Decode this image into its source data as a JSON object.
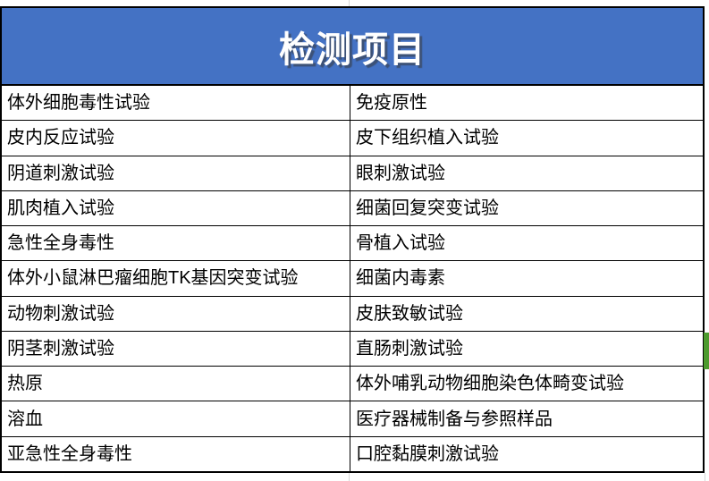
{
  "header": {
    "title": "检测项目"
  },
  "table": {
    "rows": [
      {
        "left": "体外细胞毒性试验",
        "right": "免疫原性"
      },
      {
        "left": "皮内反应试验",
        "right": "皮下组织植入试验"
      },
      {
        "left": "阴道刺激试验",
        "right": "眼刺激试验"
      },
      {
        "left": "肌肉植入试验",
        "right": "细菌回复突变试验"
      },
      {
        "left": "急性全身毒性",
        "right": "骨植入试验"
      },
      {
        "left": "体外小鼠淋巴瘤细胞TK基因突变试验",
        "right": "细菌内毒素"
      },
      {
        "left": "动物刺激试验",
        "right": "皮肤致敏试验"
      },
      {
        "left": "阴茎刺激试验",
        "right": "直肠刺激试验"
      },
      {
        "left": "热原",
        "right": "体外哺乳动物细胞染色体畸变试验"
      },
      {
        "left": "溶血",
        "right": "医疗器械制备与参照样品"
      },
      {
        "left": "亚急性全身毒性",
        "right": "口腔黏膜刺激试验"
      }
    ]
  },
  "colors": {
    "header_bg": "#4472c4",
    "header_fg": "#ffffff",
    "border": "#000000",
    "cell_fg": "#000000",
    "gridline": "#d9d9d9",
    "selection_marker": "#4c9a2d"
  }
}
